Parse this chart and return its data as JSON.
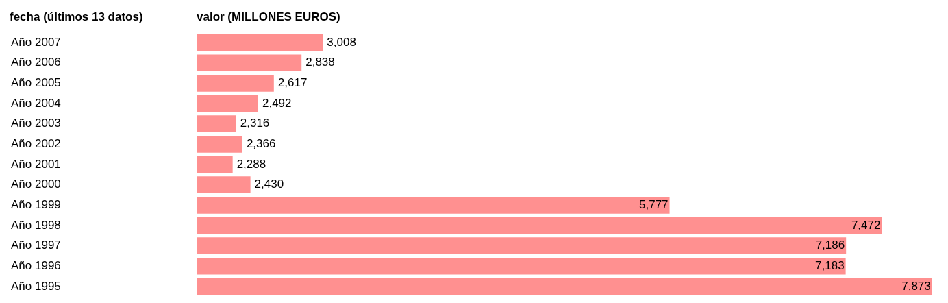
{
  "chart_data": {
    "type": "bar",
    "orientation": "horizontal",
    "ylabel": "fecha (últimos 13 datos)",
    "xlabel": "valor (MILLONES EUROS)",
    "categories": [
      "Año 2007",
      "Año 2006",
      "Año 2005",
      "Año 2004",
      "Año 2003",
      "Año 2002",
      "Año 2001",
      "Año 2000",
      "Año 1999",
      "Año 1998",
      "Año 1997",
      "Año 1996",
      "Año 1995"
    ],
    "values": [
      3008,
      2838,
      2617,
      2492,
      2316,
      2366,
      2288,
      2430,
      5777,
      7472,
      7186,
      7183,
      7873
    ],
    "value_labels": [
      "3,008",
      "2,838",
      "2,617",
      "2,492",
      "2,316",
      "2,366",
      "2,288",
      "2,430",
      "5,777",
      "7,472",
      "7,186",
      "7,183",
      "7,873"
    ],
    "color": "#ff9090",
    "tick_labels": "y"
  }
}
